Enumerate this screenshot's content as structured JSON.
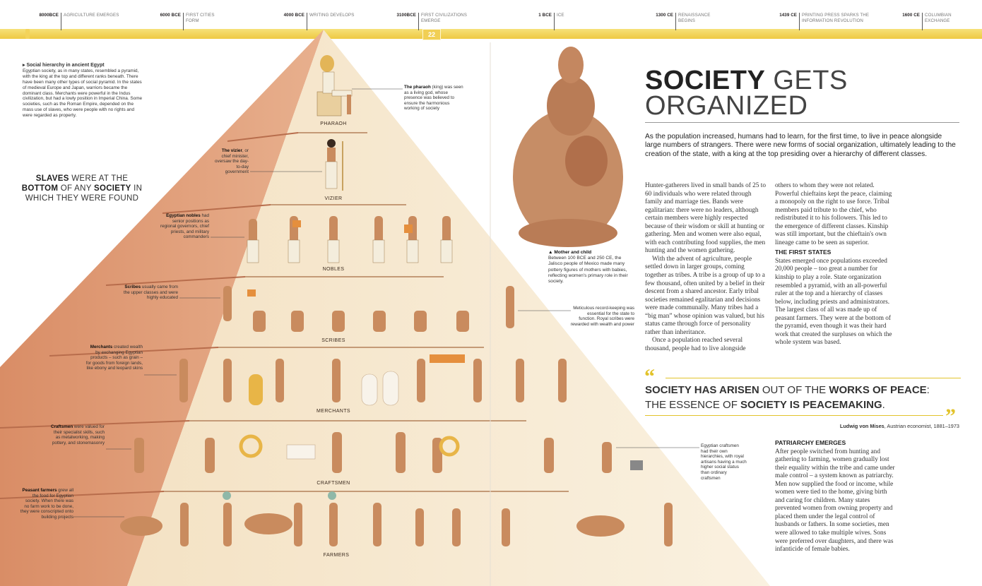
{
  "timeline": [
    {
      "date": "8000BCE",
      "label": "AGRICULTURE EMERGES"
    },
    {
      "date": "6000 BCE",
      "label": "FIRST CITIES FORM"
    },
    {
      "date": "4000 BCE",
      "label": "WRITING DEVELOPS"
    },
    {
      "date": "3100BCE",
      "label": "FIRST CIVILIZATIONS EMERGE"
    },
    {
      "date": "1 BCE",
      "label": "ICE"
    },
    {
      "date": "1300 CE",
      "label": "RENAISSANCE BEGINS"
    },
    {
      "date": "1439 CE",
      "label": "PRINTING PRESS SPARKS THE INFORMATION REVOLUTION"
    },
    {
      "date": "1600 CE",
      "label": "COLUMBIAN EXCHANGE"
    }
  ],
  "page_number": "22",
  "pyramid": {
    "tiers": [
      "PHARAOH",
      "VIZIER",
      "NOBLES",
      "SCRIBES",
      "MERCHANTS",
      "CRAFTSMEN",
      "FARMERS"
    ]
  },
  "sidebar": {
    "heading": "▸ Social hierarchy in ancient Egypt",
    "text": "Egyptian society, as in many states, resembled a pyramid, with the king at the top and different ranks beneath. There have been many other types of social pyramid. In the states of medieval Europe and Japan, warriors became the dominant class. Merchants were powerful in the Indus civilization, but had a lowly position in Imperial China. Some societies, such as the Roman Empire, depended on the mass use of slaves, who were people with no rights and were regarded as property."
  },
  "slaves_quote": {
    "w1": "SLAVES",
    "w2": " WERE AT THE",
    "w3": "BOTTOM",
    "w4": " OF ANY ",
    "w5": "SOCIETY",
    "w6": " IN",
    "w7": "WHICH THEY WERE FOUND"
  },
  "captions": {
    "pharaoh_b": "The pharaoh",
    "pharaoh": " (king) was seen as a living god, whose presence was believed to ensure the harmonious working of society",
    "vizier_b": "The vizier",
    "vizier": ", or chief minister, oversaw the day-to-day government",
    "nobles_b": "Egyptian nobles",
    "nobles": " had senior positions as regional governors, chief priests, and military commanders",
    "scribes_b": "Scribes",
    "scribes": " usually came from the upper classes and were highly educated",
    "scribes_right": "Meticulous record-keeping was essential for the state to function. Royal scribes were rewarded with wealth and power",
    "merchants_b": "Merchants",
    "merchants": " created wealth by exchanging Egyptian products – such as grain – for goods from foreign lands, like ebony and leopard skins",
    "craftsmen_b": "Craftsmen",
    "craftsmen": " were valued for their specialist skills, such as metalworking, making pottery, and stonemasonry",
    "craftsmen_right": "Egyptian craftsmen had their own hierarchies, with royal artisans having a much higher social status than ordinary craftsmen",
    "farmers_b": "Peasant farmers",
    "farmers": " grew all the food for Egyptian society. When there was no farm work to be done, they were conscripted onto building projects"
  },
  "mother_child": {
    "heading": "▲ Mother and child",
    "text": "Between 100 BCE and 250 CE, the Jalisco people of Mexico made many pottery figures of mothers with babies, reflecting women's primary role in their society."
  },
  "article": {
    "title_bold": "SOCIETY",
    "title_thin1": " GETS",
    "title_thin2": "ORGANIZED",
    "intro": "As the population increased, humans had to learn, for the first time, to live in peace alongside large numbers of strangers. There were new forms of social organization, ultimately leading to the creation of the state, with a king at the top presiding over a hierarchy of different classes.",
    "col1_p1": "Hunter-gatherers lived in small bands of 25 to 60 individuals who were related through family and marriage ties. Bands were egalitarian: there were no leaders, although certain members were highly respected because of their wisdom or skill at hunting or gathering. Men and women were also equal, with each contributing food supplies, the men hunting and the women gathering.",
    "col1_p2": "With the advent of agriculture, people settled down in larger groups, coming together as tribes. A tribe is a group of up to a few thousand, often united by a belief in their descent from a shared ancestor. Early tribal societies remained egalitarian and decisions were made communally. Many tribes had a “big man” whose opinion was valued, but his status came through force of personality rather than inheritance.",
    "col1_p3": "Once a population reached several thousand, people had to live alongside",
    "col2_p1": "others to whom they were not related. Powerful chieftains kept the peace, claiming a monopoly on the right to use force. Tribal members paid tribute to the chief, who redistributed it to his followers. This led to the emergence of different classes. Kinship was still important, but the chieftain's own lineage came to be seen as superior.",
    "col2_head": "THE FIRST STATES",
    "col2_p2": "States emerged once populations exceeded 20,000 people – too great a number for kinship to play a role. State organization resembled a pyramid, with an all-powerful ruler at the top and a hierarchy of classes below, including priests and administrators. The largest class of all was made up of peasant farmers. They were at the bottom of the pyramid, even though it was their hard work that created the surpluses on which the whole system was based.",
    "patriarchy_head": "PATRIARCHY EMERGES",
    "patriarchy_text": "After people switched from hunting and gathering to farming, women gradually lost their equality within the tribe and came under male control – a system known as patriarchy. Men now supplied the food or income, while women were tied to the home, giving birth and caring for children. Many states prevented women from owning property and placed them under the legal control of husbands or fathers. In some societies, men were allowed to take multiple wives. Sons were preferred over daughters, and there was infanticide of female babies."
  },
  "quote": {
    "a": "SOCIETY HAS ARISEN",
    "b": " OUT OF THE ",
    "c": "WORKS OF PEACE",
    "d": ":",
    "e": "THE ESSENCE OF ",
    "f": "SOCIETY IS PEACEMAKING",
    "g": ".",
    "author": "Ludwig von Mises",
    "author_desc": ", Austrian economist, 1881–1973"
  },
  "colors": {
    "pyramid_light": "#f7e9cf",
    "pyramid_side": "#d98d66",
    "accent_yellow": "#eec943"
  }
}
